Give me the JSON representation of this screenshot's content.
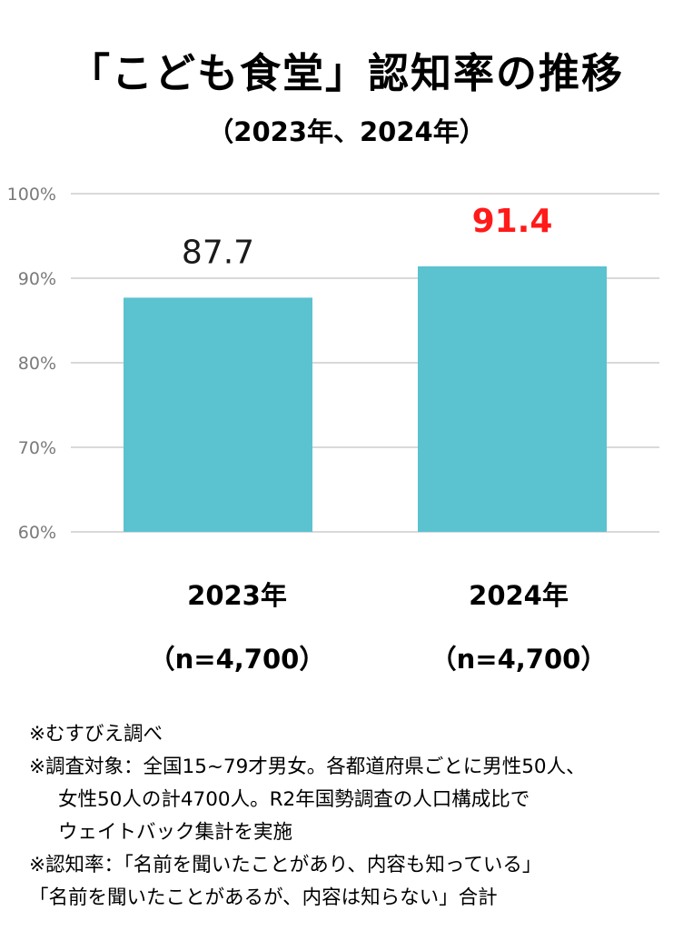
{
  "title": "「こども食堂」認知率の推移",
  "subtitle": "（2023年、2024年）",
  "chart_data": {
    "type": "bar",
    "categories": [
      "2023年",
      "2024年"
    ],
    "category_sublabels": [
      "（n=4,700）",
      "（n=4,700）"
    ],
    "values": [
      87.7,
      91.4
    ],
    "value_labels": [
      "87.7",
      "91.4"
    ],
    "value_label_colors": [
      "#1a1a1a",
      "#ff1a1a"
    ],
    "bar_color": "#5bc2d0",
    "ylim": [
      60,
      100
    ],
    "yticks": [
      60,
      70,
      80,
      90,
      100
    ],
    "ytick_labels": [
      "60%",
      "70%",
      "80%",
      "90%",
      "100%"
    ],
    "grid": true
  },
  "notes": [
    "※むすびえ調べ",
    "※調査対象：全国15~79才男女。各都道府県ごとに男性50人、",
    "女性50人の計4700人。R2年国勢調査の人口構成比で",
    "ウェイトバック集計を実施",
    "※認知率：「名前を聞いたことがあり、内容も知っている」",
    "「名前を聞いたことがあるが、内容は知らない」合計"
  ]
}
